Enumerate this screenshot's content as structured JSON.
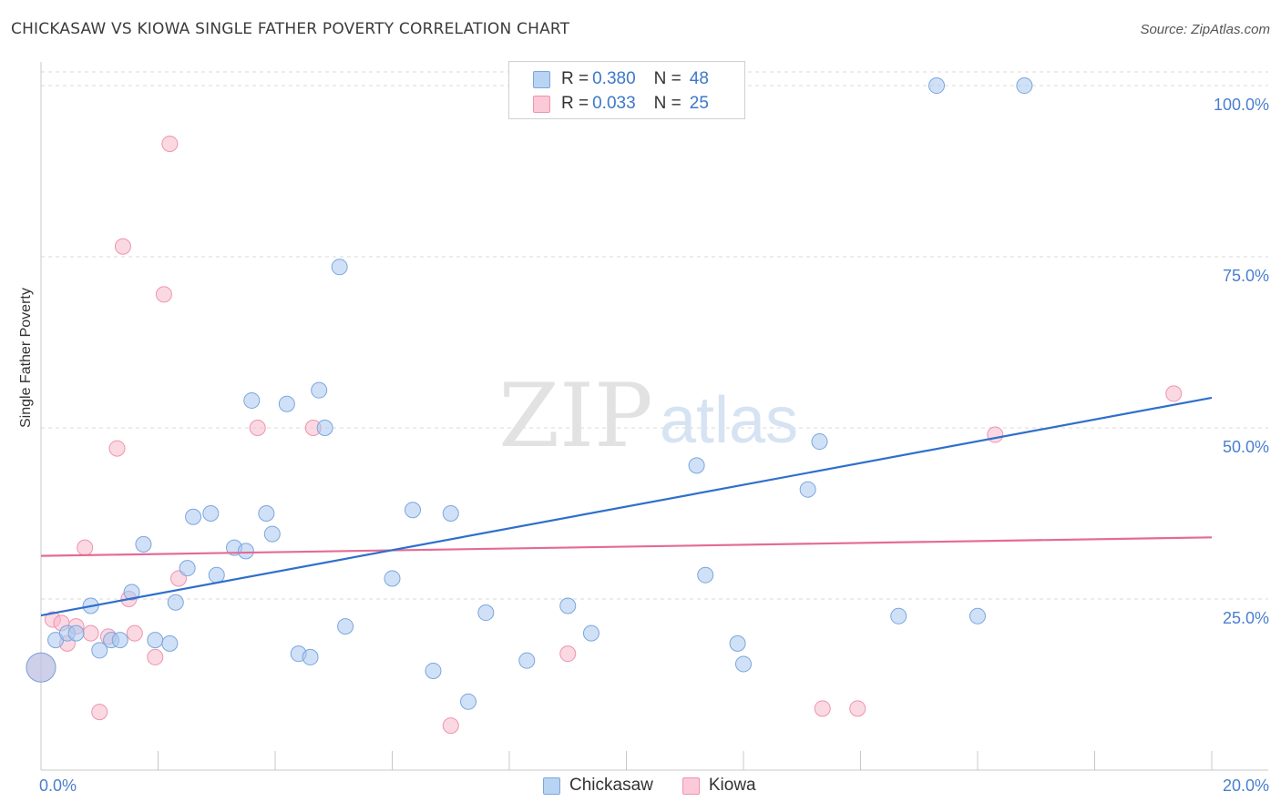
{
  "title": "CHICKASAW VS KIOWA SINGLE FATHER POVERTY CORRELATION CHART",
  "source": "Source: ZipAtlas.com",
  "watermark": {
    "zip": "ZIP",
    "atlas": "atlas"
  },
  "legend": {
    "rows": [
      {
        "r_label": "R =",
        "r_value": "0.380",
        "n_label": "N =",
        "n_value": "48"
      },
      {
        "r_label": "R =",
        "r_value": "0.033",
        "n_label": "N =",
        "n_value": "25"
      }
    ]
  },
  "bottom_legend": {
    "chickasaw": "Chickasaw",
    "kiowa": "Kiowa"
  },
  "colors": {
    "blue_fill": "#a9c8f0",
    "blue_stroke": "#7aa6de",
    "blue_line": "#2f6fcc",
    "pink_fill": "#f7b9cb",
    "pink_stroke": "#ee94b0",
    "pink_line": "#e46b93",
    "tick_label": "#4a7fcf",
    "grid": "#d8d8d8"
  },
  "chart_data": {
    "type": "scatter",
    "title": "CHICKASAW VS KIOWA SINGLE FATHER POVERTY CORRELATION CHART",
    "xlabel": "",
    "ylabel": "Single Father Poverty",
    "xlim": [
      0,
      20
    ],
    "ylim": [
      0,
      102
    ],
    "x_tick_labels": [
      "0.0%",
      "20.0%"
    ],
    "y_ticks": [
      25,
      50,
      75,
      100
    ],
    "y_tick_labels": [
      "25.0%",
      "50.0%",
      "75.0%",
      "100.0%"
    ],
    "series": [
      {
        "name": "Chickasaw",
        "r": 0.38,
        "n": 48,
        "trend": {
          "x": [
            0,
            20
          ],
          "y": [
            22.6,
            54.4
          ]
        },
        "points": [
          {
            "x": 0.0,
            "y": 15.0,
            "big": true
          },
          {
            "x": 0.25,
            "y": 19.0
          },
          {
            "x": 0.45,
            "y": 20.0
          },
          {
            "x": 0.6,
            "y": 20.0
          },
          {
            "x": 0.85,
            "y": 24.0
          },
          {
            "x": 1.0,
            "y": 17.5
          },
          {
            "x": 1.2,
            "y": 19.0
          },
          {
            "x": 1.35,
            "y": 19.0
          },
          {
            "x": 1.55,
            "y": 26.0
          },
          {
            "x": 1.75,
            "y": 33.0
          },
          {
            "x": 1.95,
            "y": 19.0
          },
          {
            "x": 2.2,
            "y": 18.5
          },
          {
            "x": 2.3,
            "y": 24.5
          },
          {
            "x": 2.5,
            "y": 29.5
          },
          {
            "x": 2.6,
            "y": 37.0
          },
          {
            "x": 2.9,
            "y": 37.5
          },
          {
            "x": 3.0,
            "y": 28.5
          },
          {
            "x": 3.3,
            "y": 32.5
          },
          {
            "x": 3.5,
            "y": 32.0
          },
          {
            "x": 3.6,
            "y": 54.0
          },
          {
            "x": 3.85,
            "y": 37.5
          },
          {
            "x": 3.95,
            "y": 34.5
          },
          {
            "x": 4.2,
            "y": 53.5
          },
          {
            "x": 4.4,
            "y": 17.0
          },
          {
            "x": 4.6,
            "y": 16.5
          },
          {
            "x": 4.75,
            "y": 55.5
          },
          {
            "x": 4.85,
            "y": 50.0
          },
          {
            "x": 5.1,
            "y": 73.5
          },
          {
            "x": 5.2,
            "y": 21.0
          },
          {
            "x": 6.0,
            "y": 28.0
          },
          {
            "x": 6.35,
            "y": 38.0
          },
          {
            "x": 6.7,
            "y": 14.5
          },
          {
            "x": 7.0,
            "y": 37.5
          },
          {
            "x": 7.3,
            "y": 10.0
          },
          {
            "x": 7.6,
            "y": 23.0
          },
          {
            "x": 8.3,
            "y": 16.0
          },
          {
            "x": 9.0,
            "y": 24.0
          },
          {
            "x": 9.4,
            "y": 20.0
          },
          {
            "x": 11.2,
            "y": 44.5
          },
          {
            "x": 11.35,
            "y": 28.5
          },
          {
            "x": 11.9,
            "y": 18.5
          },
          {
            "x": 12.0,
            "y": 15.5
          },
          {
            "x": 13.1,
            "y": 41.0
          },
          {
            "x": 13.3,
            "y": 48.0
          },
          {
            "x": 14.65,
            "y": 22.5
          },
          {
            "x": 15.3,
            "y": 100.0
          },
          {
            "x": 16.0,
            "y": 22.5
          },
          {
            "x": 16.8,
            "y": 100.0
          }
        ]
      },
      {
        "name": "Kiowa",
        "r": 0.033,
        "n": 25,
        "trend": {
          "x": [
            0,
            20
          ],
          "y": [
            31.3,
            34.0
          ]
        },
        "points": [
          {
            "x": 0.0,
            "y": 15.0,
            "big": true
          },
          {
            "x": 0.2,
            "y": 22.0
          },
          {
            "x": 0.35,
            "y": 21.5
          },
          {
            "x": 0.45,
            "y": 18.5
          },
          {
            "x": 0.6,
            "y": 21.0
          },
          {
            "x": 0.75,
            "y": 32.5
          },
          {
            "x": 0.85,
            "y": 20.0
          },
          {
            "x": 1.0,
            "y": 8.5
          },
          {
            "x": 1.15,
            "y": 19.5
          },
          {
            "x": 1.3,
            "y": 47.0
          },
          {
            "x": 1.4,
            "y": 76.5
          },
          {
            "x": 1.5,
            "y": 25.0
          },
          {
            "x": 1.6,
            "y": 20.0
          },
          {
            "x": 1.95,
            "y": 16.5
          },
          {
            "x": 2.1,
            "y": 69.5
          },
          {
            "x": 2.2,
            "y": 91.5
          },
          {
            "x": 2.35,
            "y": 28.0
          },
          {
            "x": 3.7,
            "y": 50.0
          },
          {
            "x": 4.65,
            "y": 50.0
          },
          {
            "x": 7.0,
            "y": 6.5
          },
          {
            "x": 9.0,
            "y": 17.0
          },
          {
            "x": 13.35,
            "y": 9.0
          },
          {
            "x": 13.95,
            "y": 9.0
          },
          {
            "x": 16.3,
            "y": 49.0
          },
          {
            "x": 19.35,
            "y": 55.0
          }
        ]
      }
    ]
  }
}
